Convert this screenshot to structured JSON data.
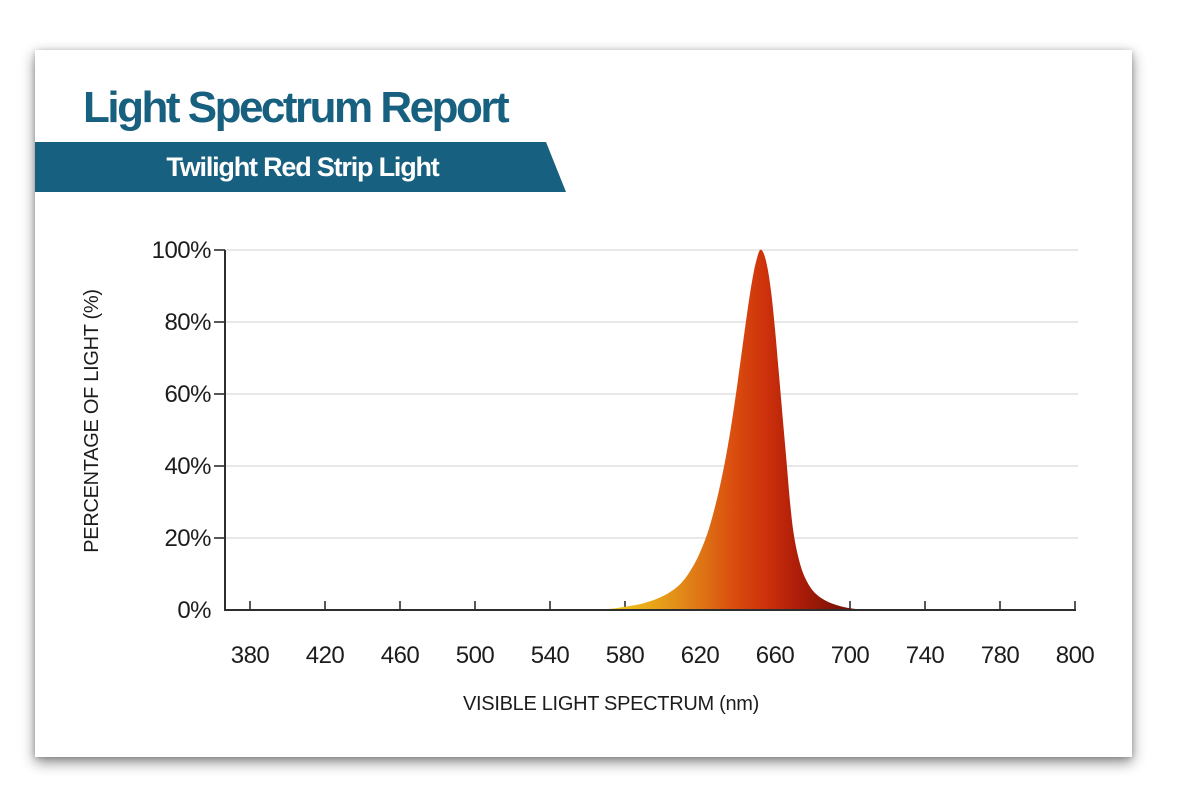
{
  "report": {
    "title": "Light Spectrum Report",
    "product_name": "Twilight Red Strip Light"
  },
  "colors": {
    "accent_teal": "#18607F",
    "text_dark": "#1C1C1C",
    "axis": "#2E2E2E",
    "grid": "#DBDBDB"
  },
  "chart_data": {
    "type": "area",
    "title": "",
    "xlabel": "VISIBLE LIGHT SPECTRUM (nm)",
    "ylabel": "PERCENTAGE OF LIGHT (%)",
    "x_tick_labels": [
      "380",
      "420",
      "460",
      "500",
      "540",
      "580",
      "620",
      "660",
      "700",
      "740",
      "780",
      "800"
    ],
    "y_tick_labels": [
      "0%",
      "20%",
      "40%",
      "60%",
      "80%",
      "100%"
    ],
    "xlim_nm": [
      366.7,
      820
    ],
    "ylim": [
      0,
      100
    ],
    "grid": true,
    "peak_nm": 652,
    "series": [
      {
        "name": "Twilight Red Strip Light spectrum",
        "x": [
          560,
          565,
          570,
          575,
          580,
          585,
          590,
          595,
          600,
          605,
          610,
          615,
          620,
          625,
          630,
          635,
          640,
          645,
          648,
          650,
          652,
          654,
          656,
          658,
          660,
          662,
          664,
          666,
          668,
          670,
          673,
          676,
          680,
          685,
          690,
          695,
          700,
          705,
          710
        ],
        "y": [
          0,
          0.1,
          0.25,
          0.5,
          0.9,
          1.3,
          1.9,
          2.7,
          3.8,
          5.3,
          7.5,
          11,
          16,
          23,
          33,
          46,
          63,
          82,
          92,
          97,
          100,
          99,
          95,
          88,
          78,
          66,
          54,
          42,
          30,
          21,
          13.5,
          9,
          5.5,
          3.2,
          1.9,
          1.05,
          0.5,
          0.2,
          0
        ]
      }
    ],
    "gradient_stops": [
      [
        "0.00",
        "#F1CC16"
      ],
      [
        "0.12",
        "#EBB318"
      ],
      [
        "0.25",
        "#E49519"
      ],
      [
        "0.38",
        "#DE7315"
      ],
      [
        "0.50",
        "#DA4E0F"
      ],
      [
        "0.62",
        "#CF330C"
      ],
      [
        "0.74",
        "#B21F09"
      ],
      [
        "0.86",
        "#8F1607"
      ],
      [
        "1.00",
        "#6B1005"
      ]
    ]
  }
}
